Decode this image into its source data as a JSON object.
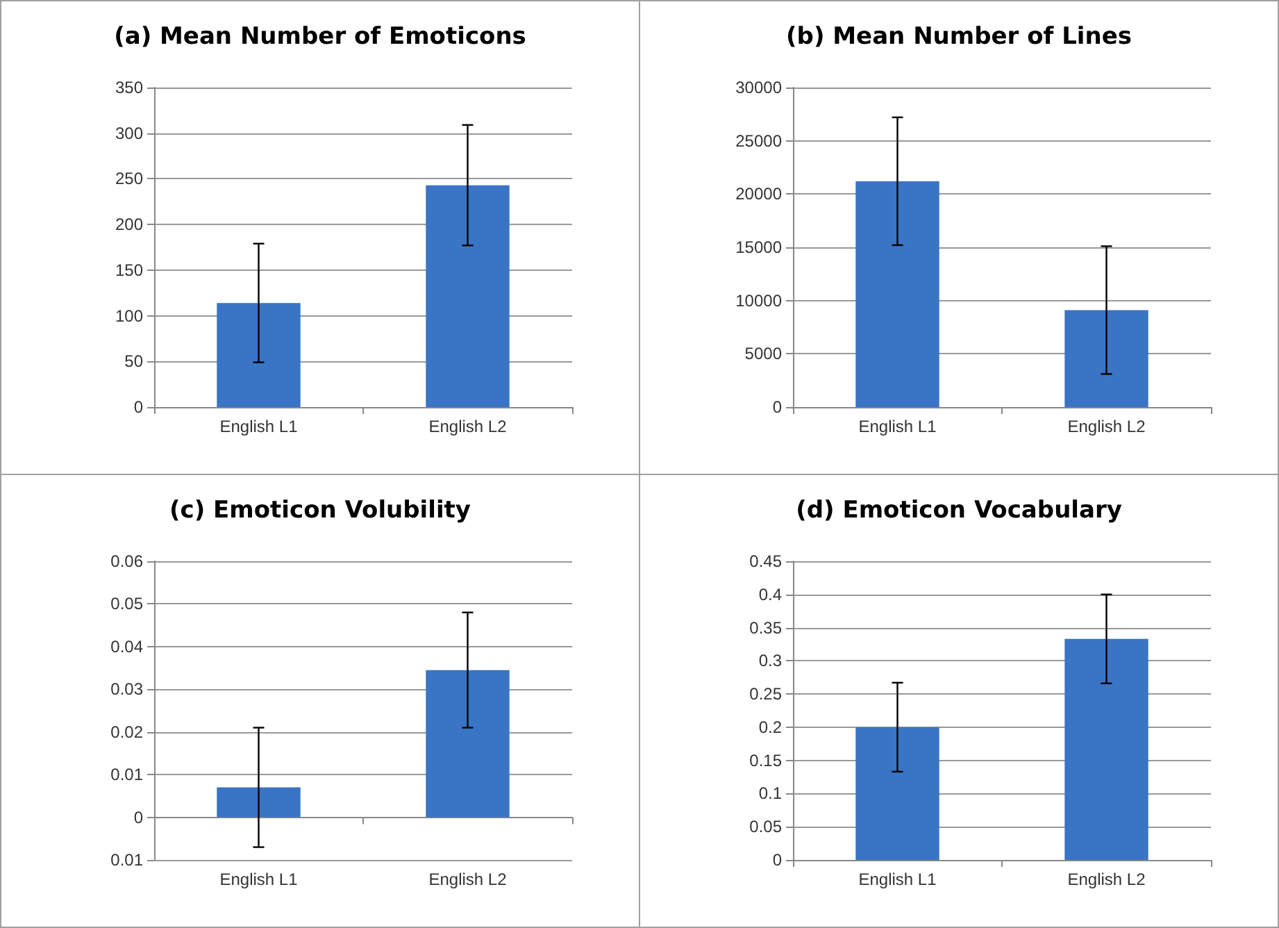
{
  "chart_data": [
    {
      "type": "bar",
      "title": "(a) Mean Number of Emoticons",
      "categories": [
        "English L1",
        "English L2"
      ],
      "values": [
        114,
        243
      ],
      "errors": [
        65,
        66
      ],
      "color": "#3a74c4",
      "ylim": [
        0,
        350
      ],
      "yticks": [
        0,
        50,
        100,
        150,
        200,
        250,
        300,
        350
      ],
      "grid": "y"
    },
    {
      "type": "bar",
      "title": "(b) Mean Number of Lines",
      "categories": [
        "English L1",
        "English L2"
      ],
      "values": [
        21200,
        9100
      ],
      "errors": [
        6000,
        6000
      ],
      "color": "#3a74c4",
      "ylim": [
        0,
        30000
      ],
      "yticks": [
        0,
        5000,
        10000,
        15000,
        20000,
        25000,
        30000
      ],
      "grid": "y"
    },
    {
      "type": "bar",
      "title": "(c) Emoticon Volubility",
      "categories": [
        "English L1",
        "English L2"
      ],
      "values": [
        0.007,
        0.0345
      ],
      "errors": [
        0.014,
        0.0135
      ],
      "color": "#3a74c4",
      "ylim": [
        -0.01,
        0.06
      ],
      "yticks": [
        {
          "value": -0.01,
          "label": "0.01"
        },
        0,
        0.01,
        0.02,
        0.03,
        0.04,
        0.05,
        0.06
      ],
      "grid": "y"
    },
    {
      "type": "bar",
      "title": "(d) Emoticon Vocabulary",
      "categories": [
        "English L1",
        "English L2"
      ],
      "values": [
        0.2,
        0.333
      ],
      "errors": [
        0.067,
        0.067
      ],
      "color": "#3a74c4",
      "ylim": [
        0,
        0.45
      ],
      "yticks": [
        0,
        0.05,
        0.1,
        0.15,
        0.2,
        0.25,
        0.3,
        0.35,
        0.4,
        0.45
      ],
      "grid": "y"
    }
  ]
}
